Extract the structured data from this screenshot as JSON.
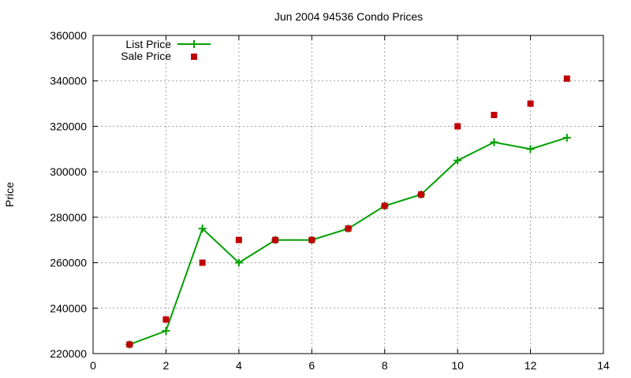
{
  "chart_data": {
    "type": "line",
    "title": "Jun 2004 94536 Condo Prices",
    "xlabel": "",
    "ylabel": "Price",
    "xlim": [
      0,
      14
    ],
    "ylim": [
      220000,
      360000
    ],
    "xticks": [
      0,
      2,
      4,
      6,
      8,
      10,
      12,
      14
    ],
    "yticks": [
      220000,
      240000,
      260000,
      280000,
      300000,
      320000,
      340000,
      360000
    ],
    "grid": true,
    "legend_position": "top-left",
    "series": [
      {
        "name": "List Price",
        "style": "line-with-plus-markers",
        "color": "#00a000",
        "x": [
          1,
          2,
          3,
          4,
          5,
          6,
          7,
          8,
          9,
          10,
          11,
          12,
          13
        ],
        "y": [
          224000,
          230000,
          275000,
          260000,
          270000,
          270000,
          275000,
          285000,
          290000,
          305000,
          313000,
          310000,
          315000
        ]
      },
      {
        "name": "Sale Price",
        "style": "square-markers",
        "color": "#c00000",
        "x": [
          1,
          2,
          3,
          4,
          5,
          6,
          7,
          8,
          9,
          10,
          11,
          12,
          13
        ],
        "y": [
          224000,
          235000,
          260000,
          270000,
          270000,
          270000,
          275000,
          285000,
          290000,
          320000,
          325000,
          330000,
          341000
        ]
      }
    ]
  }
}
